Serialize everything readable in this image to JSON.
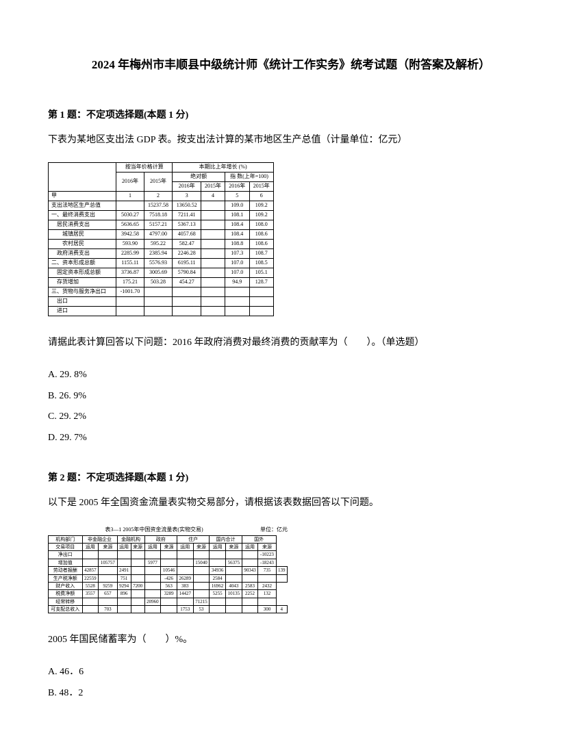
{
  "title": "2024 年梅州市丰顺县中级统计师《统计工作实务》统考试题（附答案及解析）",
  "q1": {
    "header": "第 1 题：不定项选择题(本题 1 分)",
    "text": "下表为某地区支出法 GDP 表。按支出法计算的某市地区生产总值（计量单位：亿元）",
    "prompt": "请据此表计算回答以下问题：2016 年政府消费对最终消费的贡献率为（　　）。（单选题）",
    "options": {
      "a": "A. 29. 8%",
      "b": "B. 26. 9%",
      "c": "C. 29. 2%",
      "d": "D. 29. 7%"
    },
    "table": {
      "hdr_group1": "按当年价格计算",
      "hdr_group2": "本期比上年增长 (%)",
      "hdr_year1": "2016年",
      "hdr_year2": "2015年",
      "hdr_sub1": "绝对额",
      "hdr_sub2": "指  数(上年=100)",
      "col_sub_2016a": "2016年",
      "col_sub_2015a": "2015年",
      "col_sub_2016b": "2016年",
      "col_sub_2015b": "2015年",
      "row_jia": "甲",
      "num1": "1",
      "num2": "2",
      "num3": "3",
      "num4": "4",
      "num5": "5",
      "num6": "6",
      "rows": [
        {
          "label": "支出法地区生产总值",
          "v": [
            "",
            "15237.58",
            "13650.52",
            "",
            "109.0",
            "109.2"
          ]
        },
        {
          "label": "一、最终消费支出",
          "v": [
            "5030.27",
            "7518.18",
            "7211.41",
            "",
            "108.1",
            "109.2"
          ]
        },
        {
          "label": "　居民消费支出",
          "v": [
            "5636.65",
            "5157.21",
            "5367.13",
            "",
            "108.4",
            "108.0"
          ]
        },
        {
          "label": "　　城镇居民",
          "v": [
            "3942.58",
            "4797.00",
            "4057.68",
            "",
            "108.4",
            "108.6"
          ]
        },
        {
          "label": "　　农村居民",
          "v": [
            "593.90",
            "595.22",
            "582.47",
            "",
            "108.8",
            "108.6"
          ]
        },
        {
          "label": "　政府消费支出",
          "v": [
            "2285.99",
            "2385.94",
            "2246.28",
            "",
            "107.3",
            "108.7"
          ]
        },
        {
          "label": "二、资本形成总额",
          "v": [
            "1155.11",
            "5576.93",
            "6195.11",
            "",
            "107.0",
            "108.5"
          ]
        },
        {
          "label": "　固定资本形成总额",
          "v": [
            "3736.87",
            "3005.69",
            "5790.84",
            "",
            "107.0",
            "105.1"
          ]
        },
        {
          "label": "　存货增加",
          "v": [
            "175.21",
            "503.28",
            "454.27",
            "",
            "94.9",
            "128.7"
          ]
        },
        {
          "label": "三、货物与服务净出口",
          "v": [
            "-1001.70",
            "",
            "",
            "",
            "",
            ""
          ]
        },
        {
          "label": "　出口",
          "v": [
            "",
            "",
            "",
            "",
            "",
            ""
          ]
        },
        {
          "label": "　进口",
          "v": [
            "",
            "",
            "",
            "",
            "",
            ""
          ]
        }
      ]
    }
  },
  "q2": {
    "header": "第 2 题：不定项选择题(本题 1 分)",
    "text": "以下是 2005 年全国资金流量表实物交易部分，请根据该表数据回答以下问题。",
    "table_title": "表3—1  2005年中国资金流量表(实物交易)",
    "table_unit": "单位：亿元",
    "prompt": "2005 年国民储蓄率为（　　）%。",
    "options": {
      "a": "A. 46．6",
      "b": "B. 48．2"
    },
    "table": {
      "head_row1": [
        "机构部门",
        "非金融企业",
        "金融机构",
        "政府",
        "住户",
        "国内合计",
        "国外"
      ],
      "head_row2": [
        "交易项目",
        "运用",
        "来源",
        "运用",
        "来源",
        "运用",
        "来源",
        "运用",
        "来源",
        "运用",
        "来源",
        "运用",
        "来源"
      ],
      "rows": [
        {
          "label": "净出口",
          "v": [
            "",
            "",
            "",
            "",
            "",
            "",
            "",
            "",
            "",
            "",
            "",
            "-10223"
          ]
        },
        {
          "label": "增加值",
          "v": [
            "",
            "105757",
            "",
            "",
            "5977",
            "",
            "",
            "15040",
            "",
            "56375",
            "",
            "-18243"
          ]
        },
        {
          "label": "劳动者报酬",
          "v": [
            "42857",
            "",
            "2491",
            "",
            "",
            "10546",
            "",
            "",
            "34936",
            "",
            "90343",
            "735",
            "139"
          ]
        },
        {
          "label": "生产税净额",
          "v": [
            "22559",
            "",
            "751",
            "",
            "",
            "-426",
            "26289",
            "",
            "2584",
            "",
            "",
            "",
            ""
          ]
        },
        {
          "label": "财产收入",
          "v": [
            "5528",
            "9259",
            "9294",
            "7200",
            "",
            "563",
            "383",
            "",
            "16962",
            "4043",
            "2583",
            "2432"
          ]
        },
        {
          "label": "税费净额",
          "v": [
            "3557",
            "657",
            "896",
            "",
            "",
            "3289",
            "14427",
            "",
            "5255",
            "10135",
            "2252",
            "132"
          ]
        },
        {
          "label": "经常转移",
          "v": [
            "",
            "",
            "",
            "",
            "20960",
            "",
            "",
            "71215",
            "",
            "",
            "",
            ""
          ]
        },
        {
          "label": "可支配总收入",
          "v": [
            "",
            "703",
            "",
            "",
            "",
            "",
            "1753",
            "53",
            "",
            "",
            "",
            "300",
            "4"
          ]
        }
      ]
    }
  }
}
